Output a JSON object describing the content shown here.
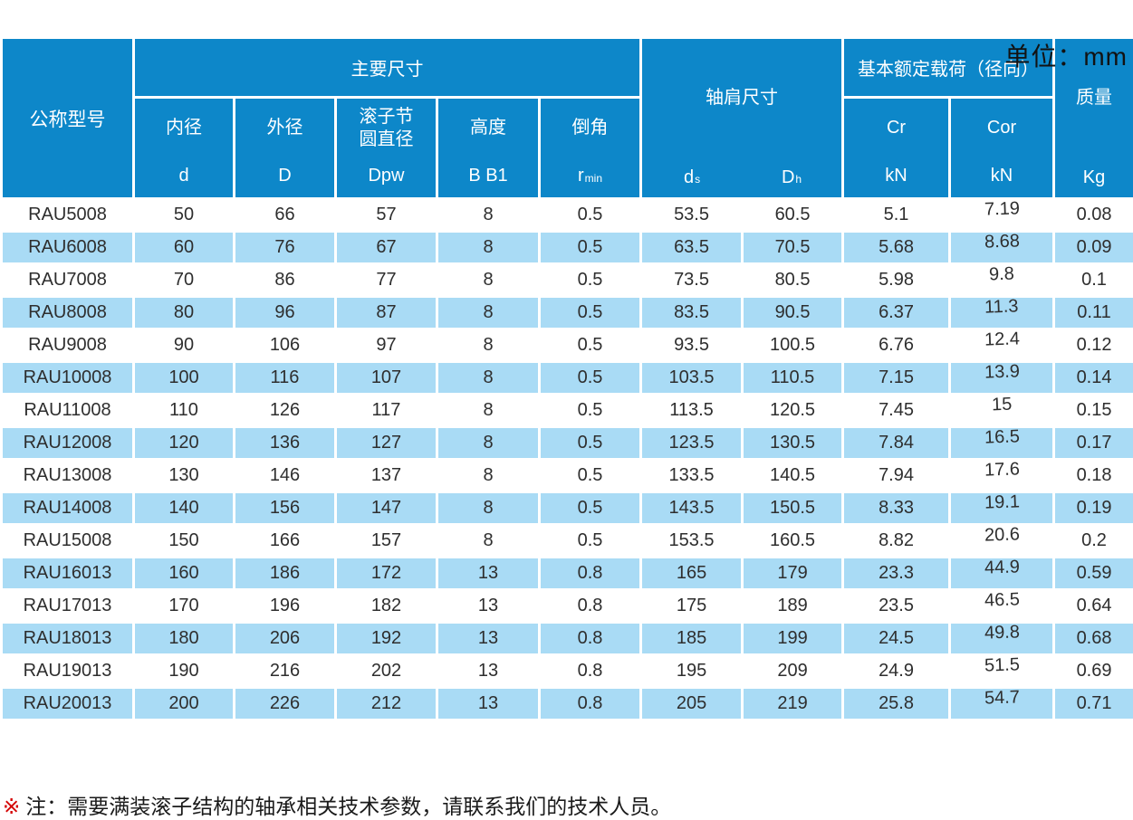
{
  "unit_label": "单位：mm",
  "colors": {
    "header_blue": "#0d87c9",
    "stripe_blue": "#a9dbf5",
    "grid_white": "#ffffff",
    "note_red": "#d40000",
    "text_dark": "#2e2e2e"
  },
  "table": {
    "model_header": "公称型号",
    "groups": {
      "main": {
        "label": "主要尺寸",
        "columns": [
          {
            "name": "内径",
            "symbol": "d",
            "symbol_sub": ""
          },
          {
            "name": "外径",
            "symbol": "D",
            "symbol_sub": ""
          },
          {
            "name": "滚子节\n圆直径",
            "symbol": "Dpw",
            "symbol_sub": ""
          },
          {
            "name": "高度",
            "symbol": "B B1",
            "symbol_sub": ""
          },
          {
            "name": "倒角",
            "symbol": "r",
            "symbol_sub": "min"
          }
        ]
      },
      "shoulder": {
        "label": "轴肩尺寸",
        "columns": [
          {
            "symbol": "d",
            "symbol_sub": "s"
          },
          {
            "symbol": "D",
            "symbol_sub": "h"
          }
        ]
      },
      "load": {
        "label": "基本额定载荷（径向）",
        "columns": [
          {
            "name": "Cr",
            "unit": "kN"
          },
          {
            "name": "Cor",
            "unit": "kN"
          }
        ]
      },
      "mass": {
        "label": "质量",
        "unit": "Kg"
      }
    },
    "rows": [
      [
        "RAU5008",
        "50",
        "66",
        "57",
        "8",
        "0.5",
        "53.5",
        "60.5",
        "5.1",
        "7.19",
        "0.08"
      ],
      [
        "RAU6008",
        "60",
        "76",
        "67",
        "8",
        "0.5",
        "63.5",
        "70.5",
        "5.68",
        "8.68",
        "0.09"
      ],
      [
        "RAU7008",
        "70",
        "86",
        "77",
        "8",
        "0.5",
        "73.5",
        "80.5",
        "5.98",
        "9.8",
        "0.1"
      ],
      [
        "RAU8008",
        "80",
        "96",
        "87",
        "8",
        "0.5",
        "83.5",
        "90.5",
        "6.37",
        "11.3",
        "0.11"
      ],
      [
        "RAU9008",
        "90",
        "106",
        "97",
        "8",
        "0.5",
        "93.5",
        "100.5",
        "6.76",
        "12.4",
        "0.12"
      ],
      [
        "RAU10008",
        "100",
        "116",
        "107",
        "8",
        "0.5",
        "103.5",
        "110.5",
        "7.15",
        "13.9",
        "0.14"
      ],
      [
        "RAU11008",
        "110",
        "126",
        "117",
        "8",
        "0.5",
        "113.5",
        "120.5",
        "7.45",
        "15",
        "0.15"
      ],
      [
        "RAU12008",
        "120",
        "136",
        "127",
        "8",
        "0.5",
        "123.5",
        "130.5",
        "7.84",
        "16.5",
        "0.17"
      ],
      [
        "RAU13008",
        "130",
        "146",
        "137",
        "8",
        "0.5",
        "133.5",
        "140.5",
        "7.94",
        "17.6",
        "0.18"
      ],
      [
        "RAU14008",
        "140",
        "156",
        "147",
        "8",
        "0.5",
        "143.5",
        "150.5",
        "8.33",
        "19.1",
        "0.19"
      ],
      [
        "RAU15008",
        "150",
        "166",
        "157",
        "8",
        "0.5",
        "153.5",
        "160.5",
        "8.82",
        "20.6",
        "0.2"
      ],
      [
        "RAU16013",
        "160",
        "186",
        "172",
        "13",
        "0.8",
        "165",
        "179",
        "23.3",
        "44.9",
        "0.59"
      ],
      [
        "RAU17013",
        "170",
        "196",
        "182",
        "13",
        "0.8",
        "175",
        "189",
        "23.5",
        "46.5",
        "0.64"
      ],
      [
        "RAU18013",
        "180",
        "206",
        "192",
        "13",
        "0.8",
        "185",
        "199",
        "24.5",
        "49.8",
        "0.68"
      ],
      [
        "RAU19013",
        "190",
        "216",
        "202",
        "13",
        "0.8",
        "195",
        "209",
        "24.9",
        "51.5",
        "0.69"
      ],
      [
        "RAU20013",
        "200",
        "226",
        "212",
        "13",
        "0.8",
        "205",
        "219",
        "25.8",
        "54.7",
        "0.71"
      ]
    ]
  },
  "note": {
    "marker": "※",
    "text": "注：需要满装滚子结构的轴承相关技术参数，请联系我们的技术人员。"
  }
}
